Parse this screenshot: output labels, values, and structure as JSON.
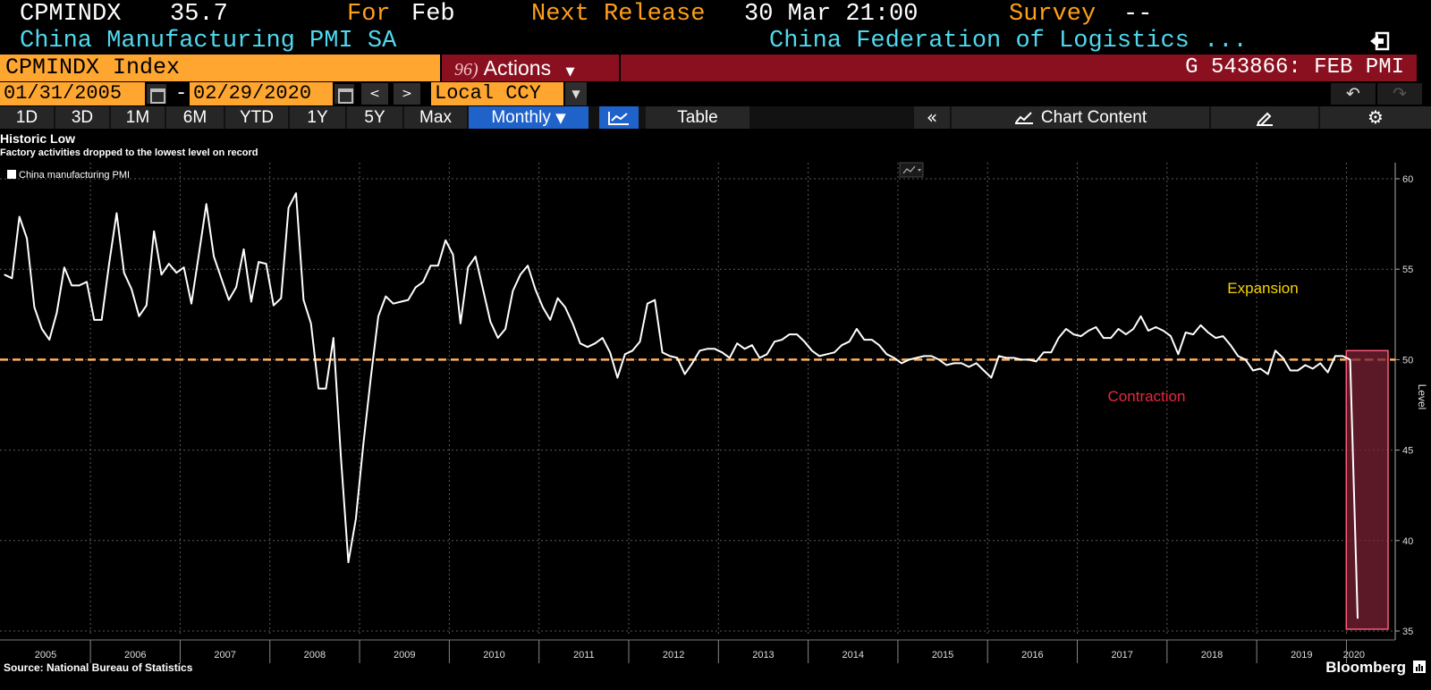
{
  "header": {
    "ticker": "CPMINDX",
    "value": "35.7",
    "for_label": "For",
    "for_value": "Feb",
    "next_release_label": "Next Release",
    "next_release_value": "30 Mar 21:00",
    "survey_label": "Survey",
    "survey_value": "--",
    "name": "China Manufacturing PMI SA",
    "source_org": "China Federation of Logistics ..."
  },
  "command_bar": {
    "security": "CPMINDX Index",
    "actions_num": "96)",
    "actions_label": "Actions",
    "chart_id": "G 543866: FEB PMI"
  },
  "date_bar": {
    "start_date": "01/31/2005",
    "end_date": "02/29/2020",
    "separator": "-",
    "currency": "Local CCY"
  },
  "toolbar": {
    "ranges": [
      "1D",
      "3D",
      "1M",
      "6M",
      "YTD",
      "1Y",
      "5Y",
      "Max"
    ],
    "frequency": "Monthly",
    "table_label": "Table",
    "chart_content_label": "Chart Content"
  },
  "footer": {
    "source": "Source: National Bureau of Statistics",
    "brand": "Bloomberg"
  },
  "colors": {
    "orange": "#ffa630",
    "dark_red": "#8a1020",
    "cyan": "#4fd8ee",
    "blue": "#1f62c9",
    "threshold_line": "#ffb060",
    "expansion": "#f5d300",
    "contraction": "#e8283c"
  },
  "chart_data": {
    "type": "line",
    "title": "Historic Low",
    "subtitle": "Factory activities dropped to the lowest level on record",
    "ylabel": "Level",
    "ylim": [
      35,
      60
    ],
    "yticks": [
      35,
      40,
      45,
      50,
      55,
      60
    ],
    "xticks": [
      "2005",
      "2006",
      "2007",
      "2008",
      "2009",
      "2010",
      "2011",
      "2012",
      "2013",
      "2014",
      "2015",
      "2016",
      "2017",
      "2018",
      "2019",
      "2020"
    ],
    "grid": true,
    "legend": "top-left",
    "series": [
      {
        "name": "China manufacturing PMI",
        "start": "2005-01",
        "frequency": "monthly",
        "values": [
          54.7,
          54.5,
          57.9,
          56.7,
          52.9,
          51.7,
          51.1,
          52.6,
          55.1,
          54.1,
          54.1,
          54.3,
          52.2,
          52.2,
          55.3,
          58.1,
          54.8,
          53.9,
          52.4,
          53.0,
          57.1,
          54.7,
          55.3,
          54.8,
          55.1,
          53.1,
          55.8,
          58.6,
          55.7,
          54.5,
          53.3,
          54.0,
          56.1,
          53.2,
          55.4,
          55.3,
          53.0,
          53.4,
          58.4,
          59.2,
          53.3,
          52.0,
          48.4,
          48.4,
          51.2,
          44.6,
          38.8,
          41.2,
          45.3,
          49.0,
          52.4,
          53.5,
          53.1,
          53.2,
          53.3,
          54.0,
          54.3,
          55.2,
          55.2,
          56.6,
          55.8,
          52.0,
          55.1,
          55.7,
          53.9,
          52.1,
          51.2,
          51.7,
          53.8,
          54.7,
          55.2,
          53.9,
          52.9,
          52.2,
          53.4,
          52.9,
          52.0,
          50.9,
          50.7,
          50.9,
          51.2,
          50.4,
          49.0,
          50.3,
          50.5,
          51.0,
          53.1,
          53.3,
          50.4,
          50.2,
          50.1,
          49.2,
          49.8,
          50.5,
          50.6,
          50.6,
          50.4,
          50.1,
          50.9,
          50.6,
          50.8,
          50.1,
          50.3,
          51.0,
          51.1,
          51.4,
          51.4,
          51.0,
          50.5,
          50.2,
          50.3,
          50.4,
          50.8,
          51.0,
          51.7,
          51.1,
          51.1,
          50.8,
          50.3,
          50.1,
          49.8,
          50.0,
          50.1,
          50.2,
          50.2,
          50.0,
          49.7,
          49.8,
          49.8,
          49.6,
          49.8,
          49.4,
          49.0,
          50.2,
          50.1,
          50.1,
          50.0,
          50.0,
          49.9,
          50.4,
          50.4,
          51.2,
          51.7,
          51.4,
          51.3,
          51.6,
          51.8,
          51.2,
          51.2,
          51.7,
          51.4,
          51.7,
          52.4,
          51.6,
          51.8,
          51.6,
          51.3,
          50.3,
          51.5,
          51.4,
          51.9,
          51.5,
          51.2,
          51.3,
          50.8,
          50.2,
          50.0,
          49.4,
          49.5,
          49.2,
          50.5,
          50.1,
          49.4,
          49.4,
          49.7,
          49.5,
          49.8,
          49.3,
          50.2,
          50.2,
          50.0,
          35.7
        ]
      }
    ],
    "reference_line": {
      "value": 50
    },
    "annotations": [
      "Expansion",
      "Contraction"
    ]
  }
}
